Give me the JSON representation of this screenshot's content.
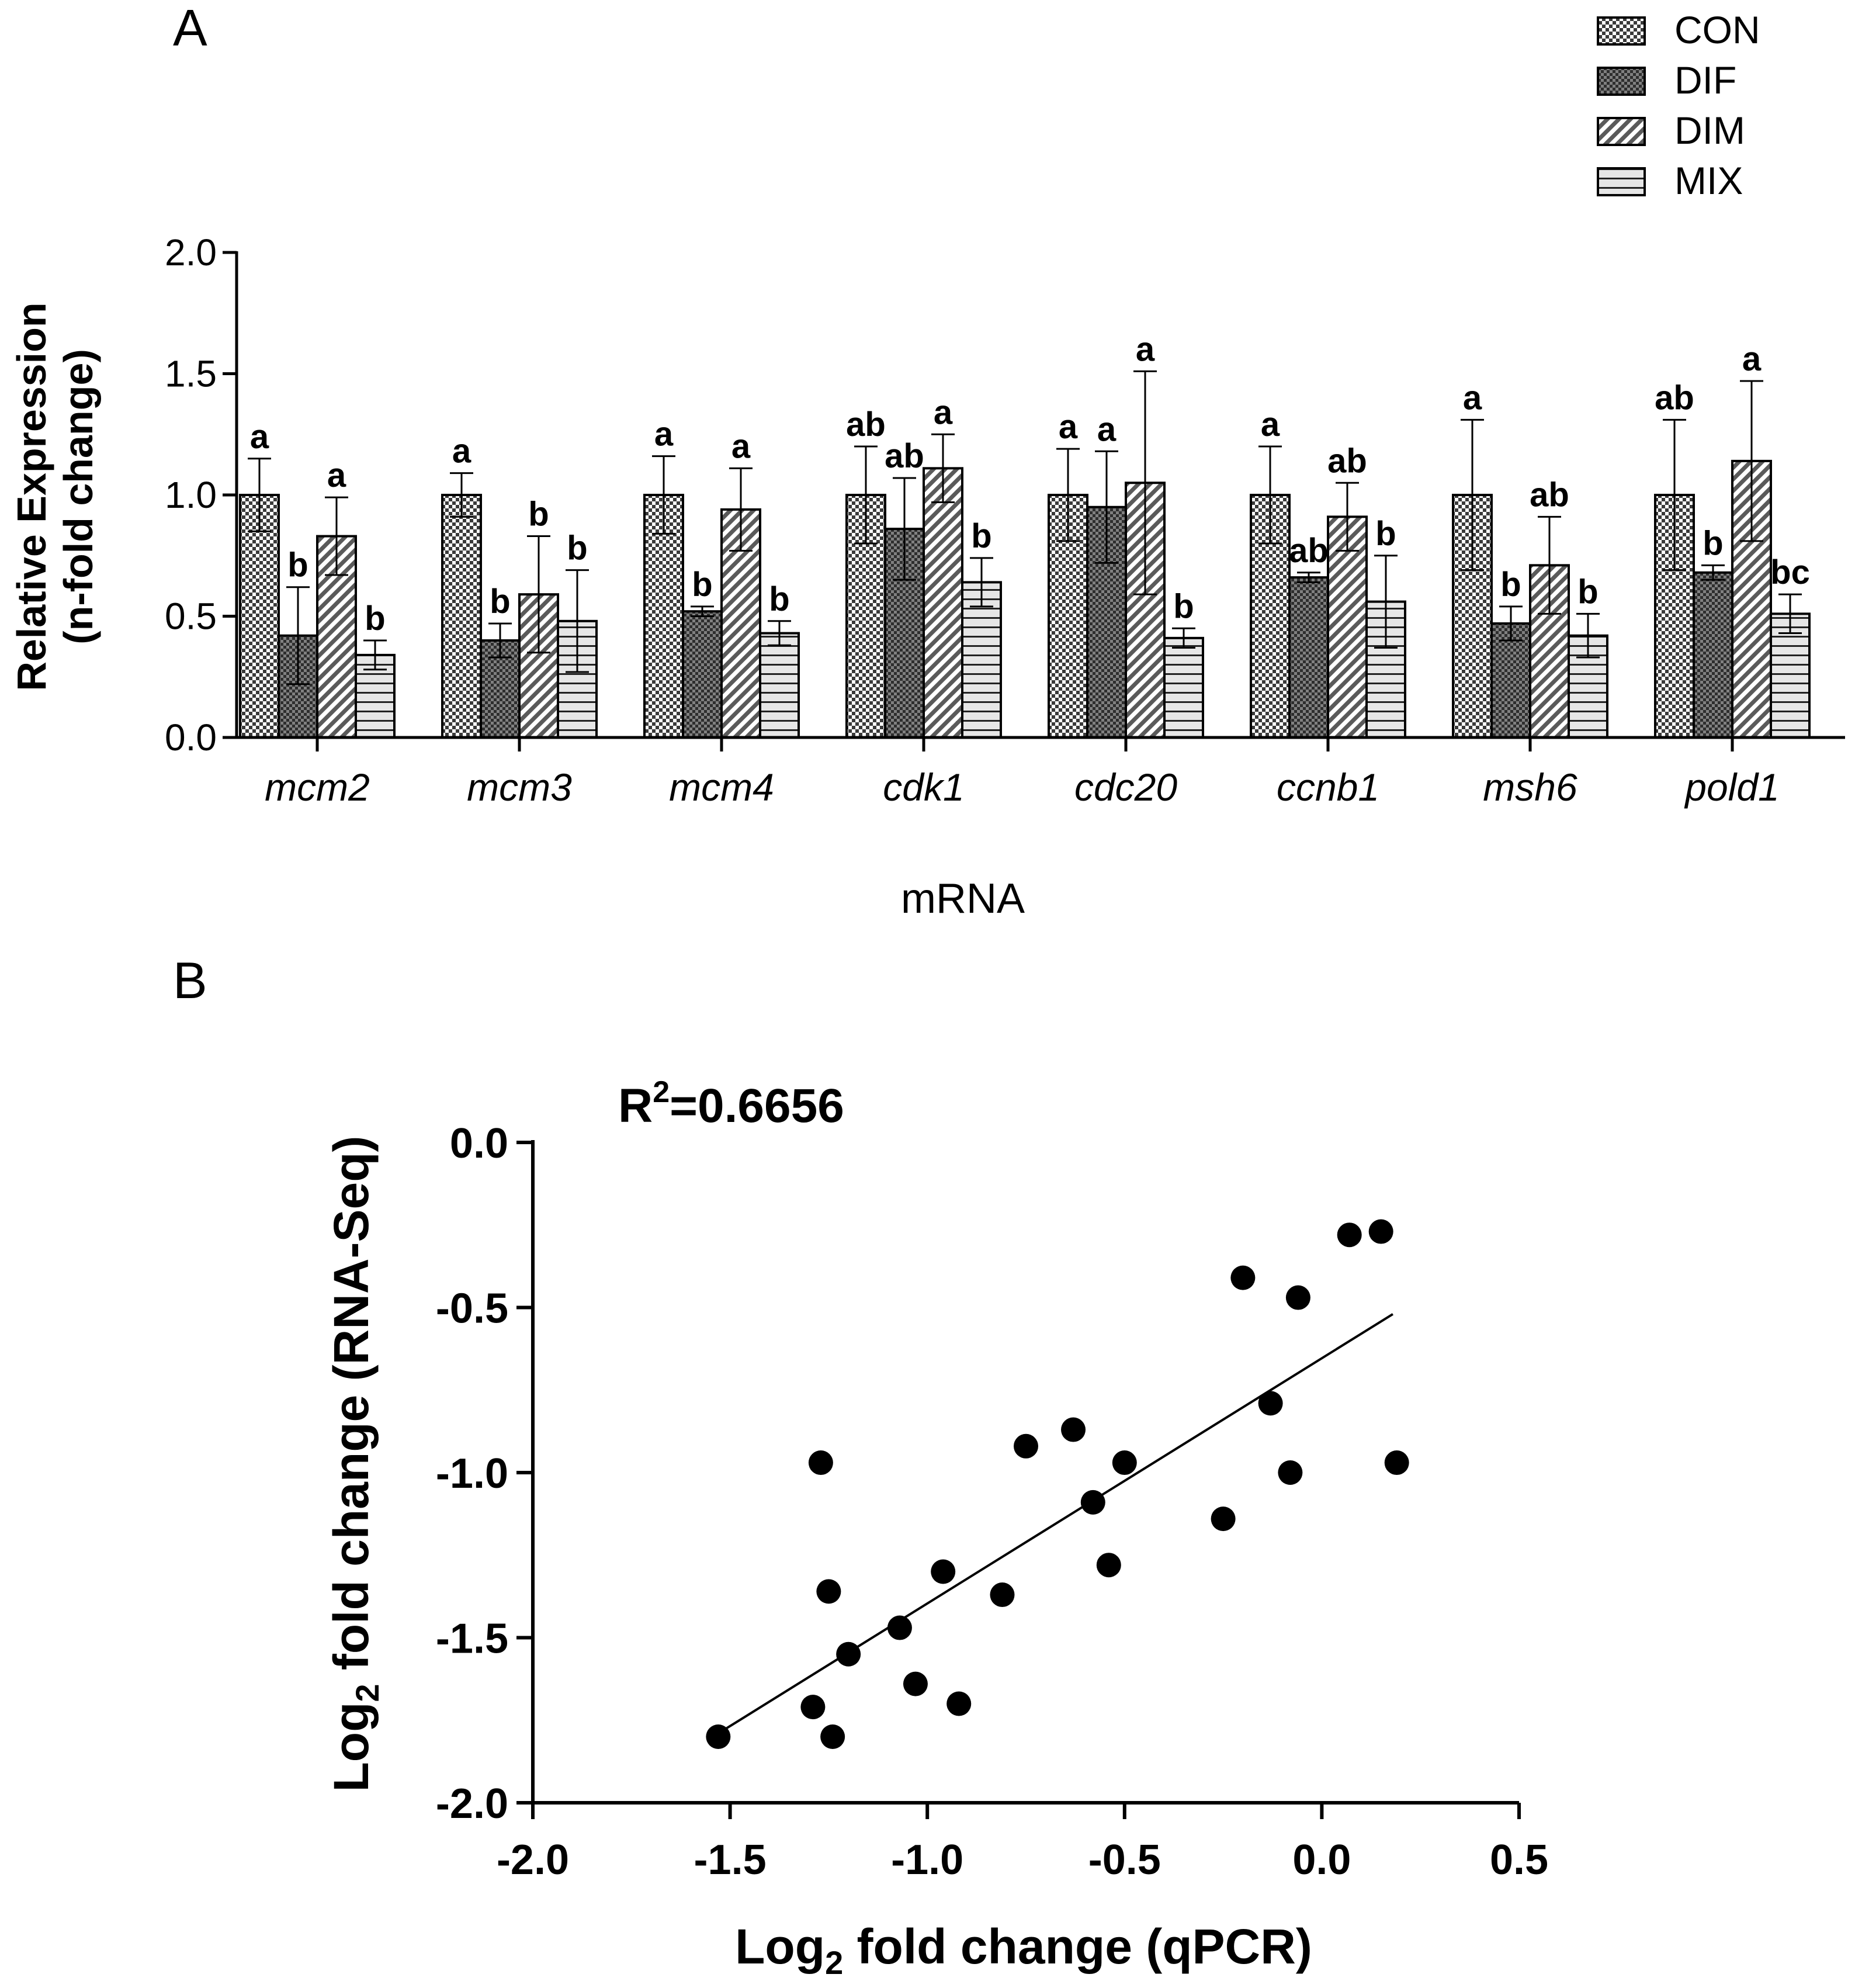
{
  "panel_a_label": "A",
  "panel_b_label": "B",
  "colors": {
    "con": "#c8c8c8",
    "dif": "#5e5e5e",
    "dim": "#b4b4b4",
    "mix": "#dedede",
    "ink": "#000000"
  },
  "chart_data": [
    {
      "type": "bar",
      "panel": "A",
      "xlabel": "mRNA",
      "ylabel_line1": "Relative Expression",
      "ylabel_line2": "(n-fold change)",
      "ylim": [
        0,
        2.0
      ],
      "yticks": [
        0.0,
        0.5,
        1.0,
        1.5,
        2.0
      ],
      "ytick_labels": [
        "0.0",
        "0.5",
        "1.0",
        "1.5",
        "2.0"
      ],
      "categories": [
        "mcm2",
        "mcm3",
        "mcm4",
        "cdk1",
        "cdc20",
        "ccnb1",
        "msh6",
        "pold1"
      ],
      "legend_position": "top-right",
      "series": [
        {
          "name": "CON",
          "pattern": "checker",
          "values": [
            1.0,
            1.0,
            1.0,
            1.0,
            1.0,
            1.0,
            1.0,
            1.0
          ],
          "errors": [
            0.15,
            0.09,
            0.16,
            0.2,
            0.19,
            0.2,
            0.31,
            0.31
          ],
          "letters": [
            "a",
            "a",
            "a",
            "ab",
            "a",
            "a",
            "a",
            "ab"
          ]
        },
        {
          "name": "DIF",
          "pattern": "dark-checker",
          "values": [
            0.42,
            0.4,
            0.52,
            0.86,
            0.95,
            0.66,
            0.47,
            0.68
          ],
          "errors": [
            0.2,
            0.07,
            0.02,
            0.21,
            0.23,
            0.02,
            0.07,
            0.03
          ],
          "letters": [
            "b",
            "b",
            "b",
            "ab",
            "a",
            "ab",
            "b",
            "b"
          ]
        },
        {
          "name": "DIM",
          "pattern": "diagonal",
          "values": [
            0.83,
            0.59,
            0.94,
            1.11,
            1.05,
            0.91,
            0.71,
            1.14
          ],
          "errors": [
            0.16,
            0.24,
            0.17,
            0.14,
            0.46,
            0.14,
            0.2,
            0.33
          ],
          "letters": [
            "a",
            "b",
            "a",
            "a",
            "a",
            "ab",
            "ab",
            "a"
          ]
        },
        {
          "name": "MIX",
          "pattern": "horizontal",
          "values": [
            0.34,
            0.48,
            0.43,
            0.64,
            0.41,
            0.56,
            0.42,
            0.51
          ],
          "errors": [
            0.06,
            0.21,
            0.05,
            0.1,
            0.04,
            0.19,
            0.09,
            0.08
          ],
          "letters": [
            "b",
            "b",
            "b",
            "b",
            "b",
            "b",
            "b",
            "bc"
          ]
        }
      ]
    },
    {
      "type": "scatter",
      "panel": "B",
      "title_prefix": "R",
      "title_sup": "2",
      "title_suffix": "=0.6656",
      "xlabel_main": "Log",
      "xlabel_sub": "2",
      "xlabel_rest": " fold change (qPCR)",
      "ylabel_main": "Log",
      "ylabel_sub": "2",
      "ylabel_rest": " fold change (RNA-Seq)",
      "xlim": [
        -2.0,
        0.5
      ],
      "ylim": [
        -2.0,
        0.0
      ],
      "xticks": [
        -2.0,
        -1.5,
        -1.0,
        -0.5,
        0.0,
        0.5
      ],
      "xtick_labels": [
        "-2.0",
        "-1.5",
        "-1.0",
        "-0.5",
        "0.0",
        "0.5"
      ],
      "yticks": [
        0.0,
        -0.5,
        -1.0,
        -1.5,
        -2.0
      ],
      "ytick_labels": [
        "0.0",
        "-0.5",
        "-1.0",
        "-1.5",
        "-2.0"
      ],
      "points": [
        {
          "x": -1.53,
          "y": -1.8
        },
        {
          "x": -1.29,
          "y": -1.71
        },
        {
          "x": -1.24,
          "y": -1.8
        },
        {
          "x": -1.2,
          "y": -1.55
        },
        {
          "x": -1.07,
          "y": -1.47
        },
        {
          "x": -1.03,
          "y": -1.64
        },
        {
          "x": -0.92,
          "y": -1.7
        },
        {
          "x": -0.96,
          "y": -1.3
        },
        {
          "x": -0.81,
          "y": -1.37
        },
        {
          "x": -1.25,
          "y": -1.36
        },
        {
          "x": -1.27,
          "y": -0.97
        },
        {
          "x": -0.75,
          "y": -0.92
        },
        {
          "x": -0.63,
          "y": -0.87
        },
        {
          "x": -0.58,
          "y": -1.09
        },
        {
          "x": -0.54,
          "y": -1.28
        },
        {
          "x": -0.5,
          "y": -0.97
        },
        {
          "x": -0.25,
          "y": -1.14
        },
        {
          "x": -0.2,
          "y": -0.41
        },
        {
          "x": -0.13,
          "y": -0.79
        },
        {
          "x": -0.08,
          "y": -1.0
        },
        {
          "x": -0.06,
          "y": -0.47
        },
        {
          "x": 0.07,
          "y": -0.28
        },
        {
          "x": 0.15,
          "y": -0.27
        },
        {
          "x": 0.19,
          "y": -0.97
        }
      ],
      "fit_line": {
        "x1": -1.53,
        "y1": -1.79,
        "x2": 0.18,
        "y2": -0.52
      }
    }
  ]
}
